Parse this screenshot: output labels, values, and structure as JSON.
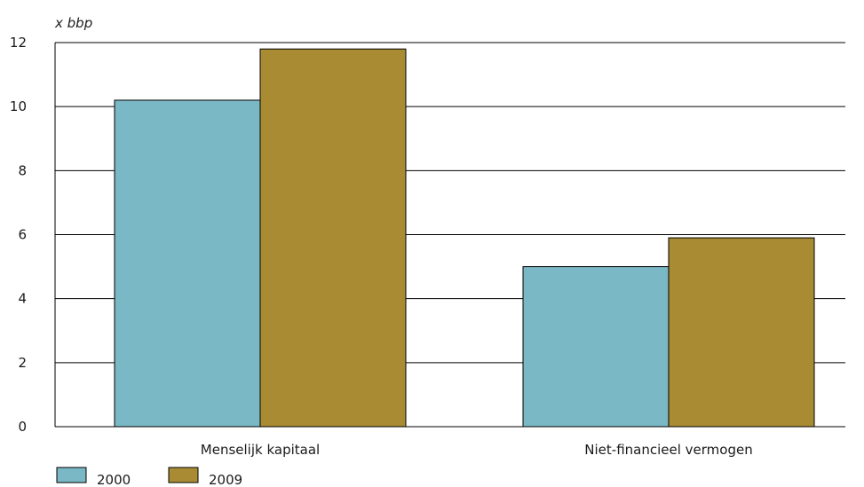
{
  "chart_data": {
    "type": "bar",
    "ylabel": "x bbp",
    "categories": [
      "Menselijk kapitaal",
      "Niet-financieel vermogen"
    ],
    "series": [
      {
        "name": "2000",
        "values": [
          10.2,
          5.0
        ],
        "color": "#7ab8c5"
      },
      {
        "name": "2009",
        "values": [
          11.8,
          5.9
        ],
        "color": "#a98b33"
      }
    ],
    "ylim": [
      0,
      12
    ],
    "yticks": [
      0,
      2,
      4,
      6,
      8,
      10,
      12
    ],
    "grid": true,
    "legend_position": "bottom-left"
  }
}
